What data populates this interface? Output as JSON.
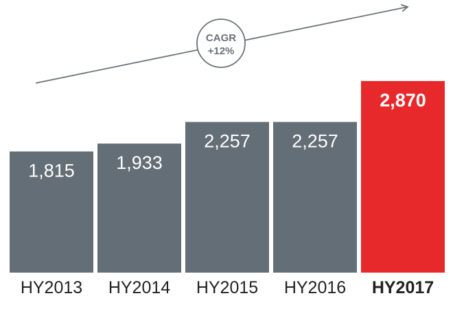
{
  "chart_data": {
    "type": "bar",
    "categories": [
      "HY2013",
      "HY2014",
      "HY2015",
      "HY2016",
      "HY2017"
    ],
    "values": [
      1815,
      1933,
      2257,
      2257,
      2870
    ],
    "value_labels": [
      "1,815",
      "1,933",
      "2,257",
      "2,257",
      "2,870"
    ],
    "highlight_index": 4,
    "colors": {
      "bar": "#646e76",
      "highlight": "#e8292b",
      "text": "#222222",
      "arrow": "#6b7278"
    },
    "ylim": [
      0,
      2870
    ],
    "annotation": {
      "line1": "CAGR",
      "line2": "+12%"
    },
    "grid": false,
    "legend": false
  }
}
